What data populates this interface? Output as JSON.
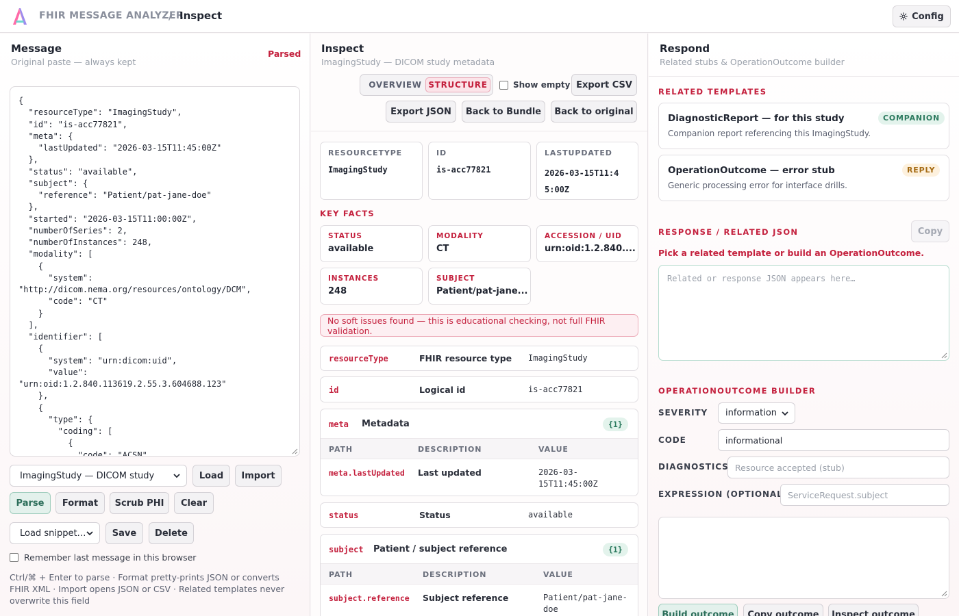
{
  "header": {
    "app_name": "FHIR MESSAGE ANALYZER",
    "separator": "/",
    "page": "Inspect",
    "config_label": "Config"
  },
  "message": {
    "title": "Message",
    "subtitle": "Original paste — always kept",
    "status": "Parsed",
    "json_text": "{\n  \"resourceType\": \"ImagingStudy\",\n  \"id\": \"is-acc77821\",\n  \"meta\": {\n    \"lastUpdated\": \"2026-03-15T11:45:00Z\"\n  },\n  \"status\": \"available\",\n  \"subject\": {\n    \"reference\": \"Patient/pat-jane-doe\"\n  },\n  \"started\": \"2026-03-15T11:00:00Z\",\n  \"numberOfSeries\": 2,\n  \"numberOfInstances\": 248,\n  \"modality\": [\n    {\n      \"system\":\n\"http://dicom.nema.org/resources/ontology/DCM\",\n      \"code\": \"CT\"\n    }\n  ],\n  \"identifier\": [\n    {\n      \"system\": \"urn:dicom:uid\",\n      \"value\":\n\"urn:oid:1.2.840.113619.2.55.3.604688.123\"\n    },\n    {\n      \"type\": {\n        \"coding\": [\n          {\n            \"code\": \"ACSN\"",
    "sample_select": "ImagingStudy — DICOM study",
    "load_label": "Load",
    "import_label": "Import",
    "parse_label": "Parse",
    "format_label": "Format",
    "scrub_label": "Scrub PHI",
    "clear_label": "Clear",
    "snippet_select": "Load snippet…",
    "save_label": "Save",
    "delete_label": "Delete",
    "remember_label": "Remember last message in this browser",
    "remember_checked": false,
    "hint": "Ctrl/⌘ + Enter to parse · Format pretty-prints JSON or converts FHIR XML · Import opens JSON or CSV · Related templates never overwrite this field"
  },
  "inspect": {
    "title": "Inspect",
    "subtitle": "ImagingStudy — DICOM study metadata",
    "tabs": [
      "OVERVIEW",
      "STRUCTURE"
    ],
    "active_tab": "STRUCTURE",
    "show_empty_label": "Show empty",
    "export_csv": "Export CSV",
    "export_json": "Export JSON",
    "back_bundle": "Back to Bundle",
    "back_original": "Back to original",
    "summary": [
      {
        "label": "RESOURCETYPE",
        "value": "ImagingStudy"
      },
      {
        "label": "ID",
        "value": "is-acc77821"
      },
      {
        "label": "LASTUPDATED",
        "value": "2026-03-15T11:4\n5:00Z"
      }
    ],
    "key_facts_title": "KEY FACTS",
    "key_facts": [
      {
        "label": "STATUS",
        "value": "available"
      },
      {
        "label": "MODALITY",
        "value": "CT"
      },
      {
        "label": "ACCESSION / UID",
        "value": "urn:oid:1.2.840...."
      },
      {
        "label": "INSTANCES",
        "value": "248"
      },
      {
        "label": "SUBJECT",
        "value": "Patient/pat-jane..."
      }
    ],
    "notice": "No soft issues found — this is educational checking, not full FHIR validation.",
    "fields": [
      {
        "key": "resourceType",
        "desc": "FHIR resource type",
        "value": "ImagingStudy"
      },
      {
        "key": "id",
        "desc": "Logical id",
        "value": "is-acc77821"
      }
    ],
    "meta_group": {
      "key": "meta",
      "desc": "Metadata",
      "count": "{1}",
      "headers": [
        "PATH",
        "DESCRIPTION",
        "VALUE"
      ],
      "rows": [
        {
          "path": "meta.lastUpdated",
          "desc": "Last updated",
          "value": "2026-03-\n15T11:45:00Z"
        }
      ]
    },
    "status_field": {
      "key": "status",
      "desc": "Status",
      "value": "available"
    },
    "subject_group": {
      "key": "subject",
      "desc": "Patient / subject reference",
      "count": "{1}",
      "headers": [
        "PATH",
        "DESCRIPTION",
        "VALUE"
      ],
      "rows": [
        {
          "path": "subject.reference",
          "desc": "Subject reference",
          "value": "Patient/pat-jane-\ndoe"
        }
      ]
    }
  },
  "respond": {
    "title": "Respond",
    "subtitle": "Related stubs & OperationOutcome builder",
    "related_title": "RELATED TEMPLATES",
    "templates": [
      {
        "title": "DiagnosticReport — for this study",
        "desc": "Companion report referencing this ImagingStudy.",
        "tag": "COMPANION"
      },
      {
        "title": "OperationOutcome — error stub",
        "desc": "Generic processing error for interface drills.",
        "tag": "REPLY"
      }
    ],
    "response_title": "RESPONSE / RELATED JSON",
    "copy_label": "Copy",
    "pick_message": "Pick a related template or build an OperationOutcome.",
    "response_placeholder": "Related or response JSON appears here…",
    "builder_title": "OPERATIONOUTCOME BUILDER",
    "severity_label": "SEVERITY",
    "severity_value": "information",
    "code_label": "CODE",
    "code_value": "informational",
    "diagnostics_label": "DIAGNOSTICS",
    "diagnostics_placeholder": "Resource accepted (stub)",
    "expression_label": "EXPRESSION (OPTIONAL)",
    "expression_placeholder": "ServiceRequest.subject",
    "build_label": "Build outcome",
    "copy_outcome_label": "Copy outcome",
    "inspect_outcome_label": "Inspect outcome"
  },
  "colors": {
    "accent": "#c4213e",
    "success": "#2c7a5f",
    "warning": "#a56b13"
  }
}
